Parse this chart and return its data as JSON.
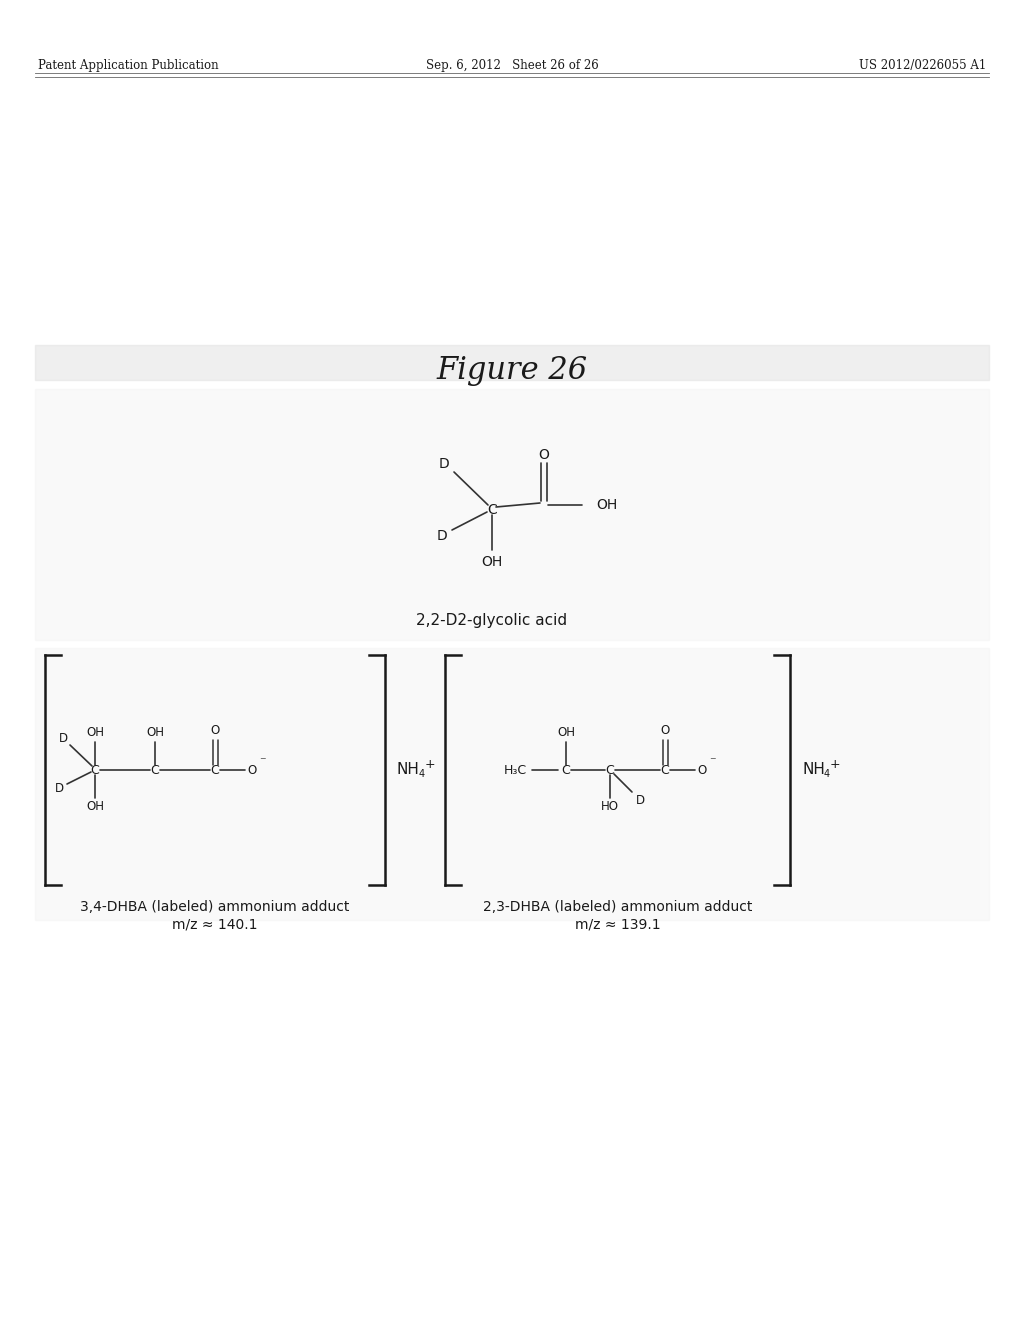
{
  "title": "Figure 26",
  "header_left": "Patent Application Publication",
  "header_center": "Sep. 6, 2012   Sheet 26 of 26",
  "header_right": "US 2012/0226055 A1",
  "bg_color": "#ffffff",
  "panel_color": "#e8e8e8",
  "text_color": "#1a1a1a",
  "bond_color": "#333333",
  "molecule1_label": "2,2-D2-glycolic acid",
  "molecule2_label": "3,4-DHBA (labeled) ammonium adduct",
  "molecule2_mz": "m/z ≈ 140.1",
  "molecule3_label": "2,3-DHBA (labeled) ammonium adduct",
  "molecule3_mz": "m/z ≈ 139.1",
  "nh4_label": "NH4+"
}
